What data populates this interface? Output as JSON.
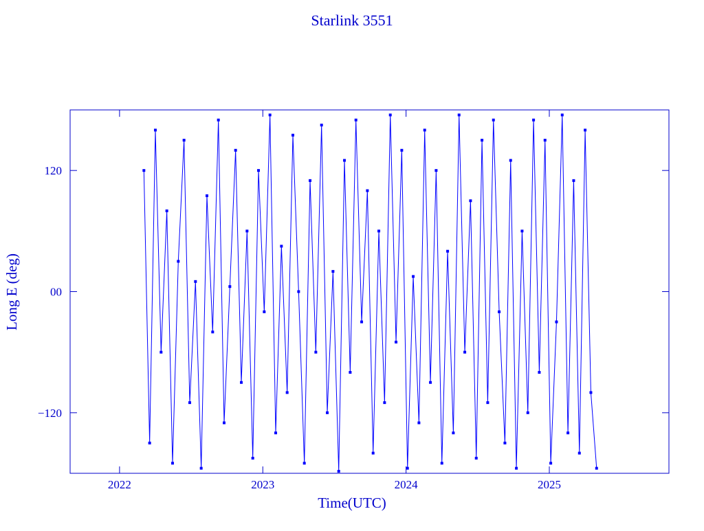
{
  "chart_data": {
    "type": "line",
    "title": "Starlink 3551",
    "x_label": "Time(UTC)",
    "y_label": "Long E (deg)",
    "xlim": [
      2021.655,
      2025.835
    ],
    "ylim": [
      -180,
      180
    ],
    "xticks": [
      2022,
      2023,
      2024,
      2025
    ],
    "yticks": [
      {
        "value": -120,
        "label": "−120"
      },
      {
        "value": 0,
        "label": "00"
      },
      120
    ],
    "series": [
      {
        "name": "Starlink 3551",
        "color": "#0000ff",
        "x": [
          2022.17,
          2022.21,
          2022.25,
          2022.29,
          2022.33,
          2022.37,
          2022.41,
          2022.45,
          2022.49,
          2022.53,
          2022.57,
          2022.61,
          2022.65,
          2022.69,
          2022.73,
          2022.77,
          2022.81,
          2022.85,
          2022.89,
          2022.93,
          2022.97,
          2023.01,
          2023.05,
          2023.09,
          2023.13,
          2023.17,
          2023.21,
          2023.25,
          2023.29,
          2023.33,
          2023.37,
          2023.41,
          2023.45,
          2023.49,
          2023.53,
          2023.57,
          2023.61,
          2023.65,
          2023.69,
          2023.73,
          2023.77,
          2023.81,
          2023.85,
          2023.89,
          2023.93,
          2023.97,
          2024.01,
          2024.05,
          2024.09,
          2024.13,
          2024.17,
          2024.21,
          2024.25,
          2024.29,
          2024.33,
          2024.37,
          2024.41,
          2024.45,
          2024.49,
          2024.53,
          2024.57,
          2024.61,
          2024.65,
          2024.69,
          2024.73,
          2024.77,
          2024.81,
          2024.85,
          2024.89,
          2024.93,
          2024.97,
          2025.01,
          2025.05,
          2025.09,
          2025.13,
          2025.17,
          2025.21,
          2025.25,
          2025.29,
          2025.33
        ],
        "values": [
          120,
          -150,
          160,
          -60,
          80,
          -170,
          30,
          150,
          -110,
          10,
          -175,
          95,
          -40,
          170,
          -130,
          5,
          140,
          -90,
          60,
          -165,
          120,
          -20,
          175,
          -140,
          45,
          -100,
          155,
          0,
          -170,
          110,
          -60,
          165,
          -120,
          20,
          -178,
          130,
          -80,
          170,
          -30,
          100,
          -160,
          60,
          -110,
          175,
          -50,
          140,
          -175,
          15,
          -130,
          160,
          -90,
          120,
          -170,
          40,
          -140,
          175,
          -60,
          90,
          -165,
          150,
          -110,
          170,
          -20,
          -150,
          130,
          -175,
          60,
          -120,
          170,
          -80,
          150,
          -170,
          -30,
          175,
          -140,
          110,
          -160,
          160,
          -100,
          -175
        ]
      }
    ]
  }
}
